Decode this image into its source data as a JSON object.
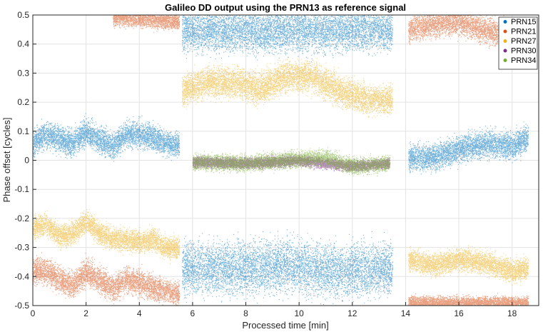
{
  "chart_data": {
    "type": "scatter",
    "title": "Galileo DD output using the PRN13 as reference signal",
    "xlabel": "Processed time [min]",
    "ylabel": "Phase offset [cycles]",
    "xlim": [
      0,
      19
    ],
    "ylim": [
      -0.5,
      0.5
    ],
    "x_ticks": [
      0,
      2,
      4,
      6,
      8,
      10,
      12,
      14,
      16,
      18
    ],
    "y_ticks": [
      -0.5,
      -0.4,
      -0.3,
      -0.2,
      -0.1,
      0,
      0.1,
      0.2,
      0.3,
      0.4,
      0.5
    ],
    "x_tick_labels": [
      "0",
      "2",
      "4",
      "6",
      "8",
      "10",
      "12",
      "14",
      "16",
      "18"
    ],
    "y_tick_labels": [
      "-0.5",
      "-0.4",
      "-0.3",
      "-0.2",
      "-0.1",
      "0",
      "0.1",
      "0.2",
      "0.3",
      "0.4",
      "0.5"
    ],
    "grid": true,
    "legend_position": "top-right",
    "series": [
      {
        "name": "PRN15",
        "color": "#0072BD",
        "segments": [
          {
            "x_range": [
              0,
              5.5
            ],
            "x": [
              0,
              0.5,
              1,
              1.5,
              2,
              2.5,
              3,
              3.5,
              4,
              4.5,
              5,
              5.5
            ],
            "y": [
              0.06,
              0.09,
              0.07,
              0.06,
              0.1,
              0.07,
              0.05,
              0.09,
              0.09,
              0.08,
              0.06,
              0.05
            ],
            "spread": 0.03
          },
          {
            "x_range": [
              5.6,
              13.5
            ],
            "x": [
              5.6,
              7.5,
              9.5,
              11.5,
              13.5
            ],
            "y": [
              -0.37,
              -0.37,
              -0.36,
              -0.38,
              -0.37
            ],
            "spread": 0.06
          },
          {
            "x_range": [
              5.6,
              13.5
            ],
            "x": [
              5.6,
              13.5
            ],
            "y": [
              0.45,
              0.45
            ],
            "spread": 0.05
          },
          {
            "x_range": [
              14.1,
              18.6
            ],
            "x": [
              14.1,
              15,
              16,
              17,
              18,
              18.6
            ],
            "y": [
              0.01,
              0.01,
              0.04,
              0.06,
              0.05,
              0.08
            ],
            "spread": 0.03
          }
        ]
      },
      {
        "name": "PRN21",
        "color": "#D95319",
        "segments": [
          {
            "x_range": [
              0,
              5.5
            ],
            "x": [
              0,
              0.5,
              1,
              1.5,
              2,
              2.5,
              3,
              3.5,
              4,
              4.5,
              5,
              5.5
            ],
            "y": [
              -0.38,
              -0.38,
              -0.41,
              -0.43,
              -0.38,
              -0.41,
              -0.44,
              -0.41,
              -0.42,
              -0.44,
              -0.45,
              -0.46
            ],
            "spread": 0.03
          },
          {
            "x_range": [
              3.0,
              5.5
            ],
            "x": [
              3,
              5.5
            ],
            "y": [
              0.495,
              0.48
            ],
            "spread": 0.02
          },
          {
            "x_range": [
              14.1,
              18.6
            ],
            "x": [
              14.1,
              15,
              16,
              17,
              18,
              18.6
            ],
            "y": [
              0.45,
              0.47,
              0.48,
              0.45,
              0.43,
              0.42
            ],
            "spread": 0.03
          },
          {
            "x_range": [
              14.1,
              18.6
            ],
            "x": [
              14.1,
              18.6
            ],
            "y": [
              -0.49,
              -0.49
            ],
            "spread": 0.015
          }
        ]
      },
      {
        "name": "PRN27",
        "color": "#EDB120",
        "segments": [
          {
            "x_range": [
              0,
              5.5
            ],
            "x": [
              0,
              0.5,
              1,
              1.5,
              2,
              2.5,
              3,
              3.5,
              4,
              4.5,
              5,
              5.5
            ],
            "y": [
              -0.23,
              -0.22,
              -0.26,
              -0.25,
              -0.21,
              -0.25,
              -0.27,
              -0.27,
              -0.28,
              -0.27,
              -0.3,
              -0.3
            ],
            "spread": 0.025
          },
          {
            "x_range": [
              5.6,
              13.5
            ],
            "x": [
              5.6,
              6.5,
              7.5,
              8.5,
              9.5,
              10.5,
              11.5,
              12.5,
              13.5
            ],
            "y": [
              0.24,
              0.27,
              0.27,
              0.25,
              0.29,
              0.29,
              0.24,
              0.21,
              0.21
            ],
            "spread": 0.035
          },
          {
            "x_range": [
              14.1,
              18.6
            ],
            "x": [
              14.1,
              15,
              16,
              17,
              18,
              18.6
            ],
            "y": [
              -0.34,
              -0.36,
              -0.34,
              -0.35,
              -0.38,
              -0.37
            ],
            "spread": 0.025
          }
        ]
      },
      {
        "name": "PRN30",
        "color": "#7E2F8E",
        "segments": [
          {
            "x_range": [
              6.0,
              13.4
            ],
            "x": [
              6,
              8,
              10,
              12,
              13.4
            ],
            "y": [
              -0.005,
              -0.01,
              0,
              -0.02,
              -0.01
            ],
            "spread": 0.012
          }
        ]
      },
      {
        "name": "PRN34",
        "color": "#77AC30",
        "segments": [
          {
            "x_range": [
              6.0,
              13.4
            ],
            "x": [
              6,
              8,
              10,
              11,
              12,
              13.4
            ],
            "y": [
              -0.005,
              -0.01,
              0.005,
              0.01,
              -0.02,
              -0.01
            ],
            "spread": 0.018
          }
        ]
      }
    ]
  }
}
